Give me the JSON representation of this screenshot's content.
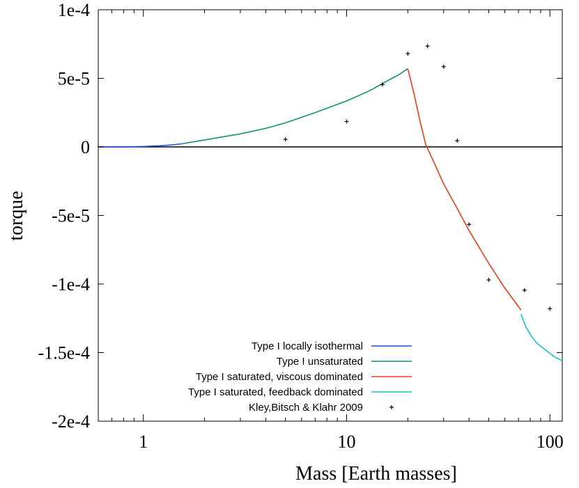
{
  "chart_data": {
    "type": "line",
    "title": "",
    "xlabel": "Mass [Earth masses]",
    "ylabel": "torque",
    "xscale": "log",
    "xlim": [
      0.6,
      115
    ],
    "ylim": [
      -0.0002,
      0.0001
    ],
    "x_ticks": [
      1,
      10,
      100
    ],
    "x_tick_labels": [
      "1",
      "10",
      "100"
    ],
    "y_ticks": [
      0.0001,
      5e-05,
      0,
      -5e-05,
      -0.0001,
      -0.00015,
      -0.0002
    ],
    "y_tick_labels": [
      "1e-4",
      "5e-5",
      "0",
      "-5e-5",
      "-1e-4",
      "-1.5e-4",
      "-2e-4"
    ],
    "zero_line": true,
    "legend_position": "bottom-left",
    "series": [
      {
        "name": "Type I locally isothermal",
        "color": "#1f4fe0",
        "points": [
          [
            0.6,
            0.0
          ],
          [
            0.8,
            0.0
          ],
          [
            1.0,
            3e-07
          ],
          [
            1.2,
            8e-07
          ],
          [
            1.4,
            1.5e-06
          ],
          [
            1.55,
            2.3e-06
          ]
        ]
      },
      {
        "name": "Type I unsaturated",
        "color": "#11946a",
        "points": [
          [
            1.55,
            2.3e-06
          ],
          [
            2.0,
            5e-06
          ],
          [
            3.0,
            9.5e-06
          ],
          [
            4.0,
            1.35e-05
          ],
          [
            5.0,
            1.75e-05
          ],
          [
            7.0,
            2.5e-05
          ],
          [
            10.0,
            3.35e-05
          ],
          [
            13.0,
            4.1e-05
          ],
          [
            16.0,
            4.85e-05
          ],
          [
            18.0,
            5.25e-05
          ],
          [
            20.0,
            5.7e-05
          ]
        ]
      },
      {
        "name": "Type I saturated, viscous dominated",
        "color": "#ee3a1a",
        "points": [
          [
            20.0,
            5.7e-05
          ],
          [
            21.5,
            3.8e-05
          ],
          [
            23.0,
            1.8e-05
          ],
          [
            24.5,
            1.5e-06
          ],
          [
            27.0,
            -1.2e-05
          ],
          [
            30.0,
            -2.7e-05
          ],
          [
            35.0,
            -4.5e-05
          ],
          [
            40.0,
            -6.1e-05
          ],
          [
            50.0,
            -8.5e-05
          ],
          [
            60.0,
            -0.000103
          ],
          [
            72.0,
            -0.000119
          ]
        ]
      },
      {
        "name": "Type I saturated, feedback dominated",
        "color": "#11c4c4",
        "points": [
          [
            72.0,
            -0.000122
          ],
          [
            76.0,
            -0.000131
          ],
          [
            81.0,
            -0.000138
          ],
          [
            86.0,
            -0.000143
          ],
          [
            95.0,
            -0.000148
          ],
          [
            105.0,
            -0.000153
          ],
          [
            115.0,
            -0.000156
          ]
        ]
      }
    ],
    "markers": {
      "name": "Kley,Bitsch & Klahr 2009",
      "symbol": "+",
      "color": "#000000",
      "points": [
        [
          5.0,
          5.5e-06
        ],
        [
          10.0,
          1.85e-05
        ],
        [
          15.0,
          4.55e-05
        ],
        [
          20.0,
          6.8e-05
        ],
        [
          25.0,
          7.35e-05
        ],
        [
          30.0,
          5.85e-05
        ],
        [
          35.0,
          4.5e-06
        ],
        [
          40.0,
          -5.65e-05
        ],
        [
          50.0,
          -9.7e-05
        ],
        [
          75.0,
          -0.0001045
        ],
        [
          100.0,
          -0.000118
        ]
      ]
    }
  }
}
